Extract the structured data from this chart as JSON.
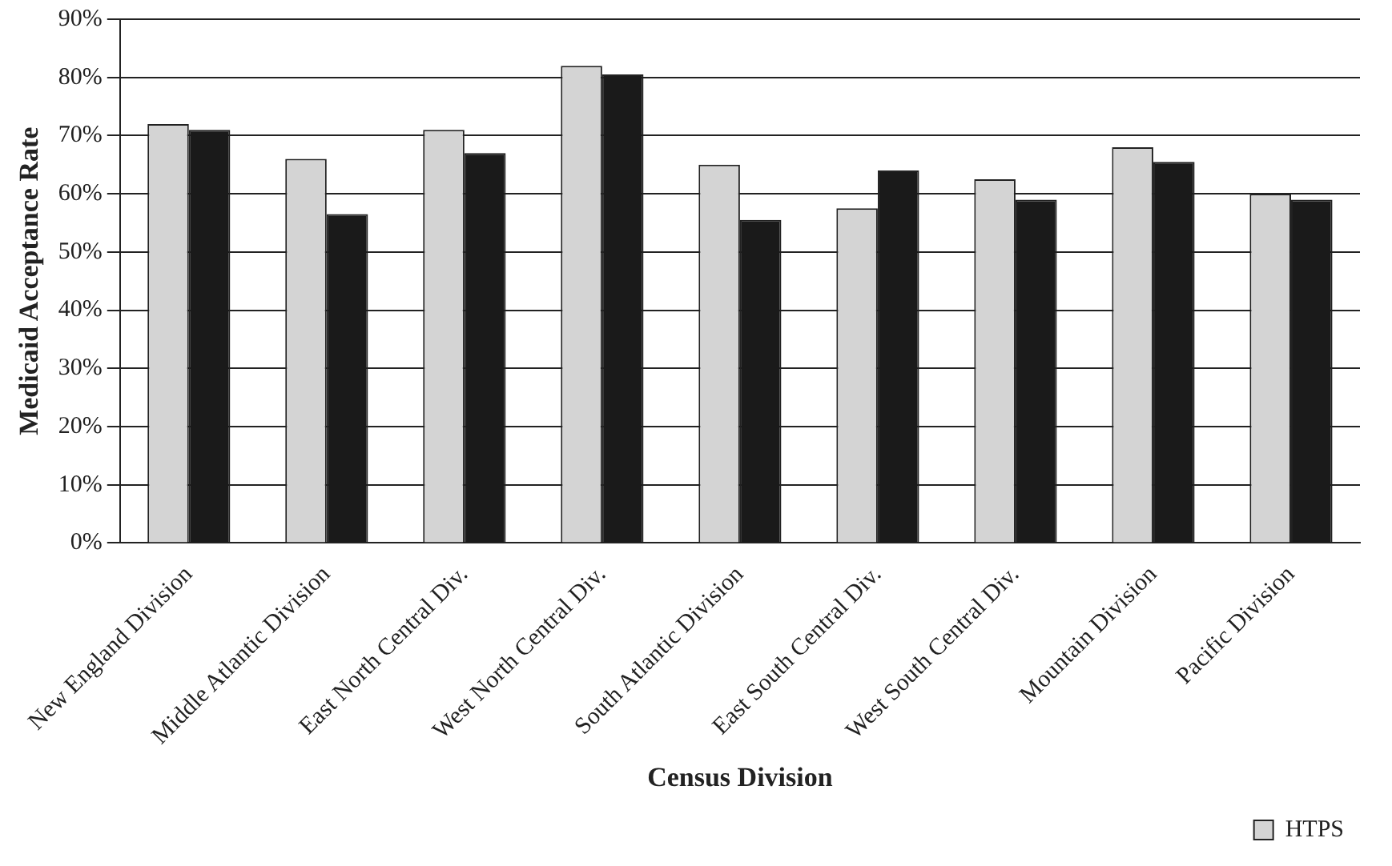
{
  "chart_data": {
    "type": "bar",
    "xlabel": "Census Division",
    "ylabel": "Medicaid Acceptance Rate",
    "categories": [
      "New England Division",
      "Middle Atlantic Division",
      "East North Central Div.",
      "West North Central Div.",
      "South Atlantic Division",
      "East South Central Div.",
      "West South Central Div.",
      "Mountain Division",
      "Pacific Division"
    ],
    "series": [
      {
        "name": "HTPS",
        "color": "#d4d4d4",
        "values": [
          72,
          66,
          71,
          82,
          65,
          57.5,
          62.5,
          68,
          60
        ]
      },
      {
        "color": "#1a1a1a",
        "values": [
          71,
          56.5,
          67,
          80.5,
          55.5,
          64,
          59,
          65.5,
          59
        ]
      }
    ],
    "ylim": [
      0,
      90
    ],
    "yticks": [
      {
        "value": 0,
        "label": "0%"
      },
      {
        "value": 10,
        "label": "10%"
      },
      {
        "value": 20,
        "label": "20%"
      },
      {
        "value": 30,
        "label": "30%"
      },
      {
        "value": 40,
        "label": "40%"
      },
      {
        "value": 50,
        "label": "50%"
      },
      {
        "value": 60,
        "label": "60%"
      },
      {
        "value": 70,
        "label": "70%"
      },
      {
        "value": 80,
        "label": "80%"
      },
      {
        "value": 90,
        "label": "90%"
      }
    ],
    "grid": "y",
    "legend": "bottom right"
  }
}
